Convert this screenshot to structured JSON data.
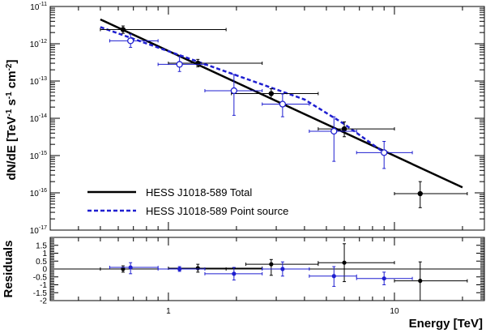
{
  "chart_data": [
    {
      "type": "scatter",
      "xscale": "log",
      "yscale": "log",
      "xlim": [
        0.3,
        25
      ],
      "ylim": [
        1e-17,
        1e-11
      ],
      "xlabel": "Energy [TeV]",
      "ylabel": "dN/dE [TeV",
      "ylabel_units": [
        "-1",
        " s",
        "-1",
        " cm",
        "-2",
        "]"
      ],
      "x_ticks": [
        {
          "value": 1,
          "label": "1"
        },
        {
          "value": 10,
          "label": "10"
        }
      ],
      "y_ticks": [
        {
          "value": 1e-11,
          "base": "10",
          "exp": "-11"
        },
        {
          "value": 1e-12,
          "base": "10",
          "exp": "-12"
        },
        {
          "value": 1e-13,
          "base": "10",
          "exp": "-13"
        },
        {
          "value": 1e-14,
          "base": "10",
          "exp": "-14"
        },
        {
          "value": 1e-15,
          "base": "10",
          "exp": "-15"
        },
        {
          "value": 1e-16,
          "base": "10",
          "exp": "-16"
        },
        {
          "value": 1e-17,
          "base": "10",
          "exp": "-17"
        }
      ],
      "legend_position": "bottom-left",
      "series": [
        {
          "name": "HESS J1018-589 Total",
          "color": "#000000",
          "marker": "filled-circle",
          "line": {
            "x": [
              0.5,
              20
            ],
            "y": [
              4.5e-12,
              1.4e-16
            ],
            "style": "solid"
          },
          "points": [
            {
              "x": 0.63,
              "y": 2.4e-12,
              "xlo": 0.5,
              "xhi": 1.8,
              "ylo": 1.9e-12,
              "yhi": 3e-12
            },
            {
              "x": 1.35,
              "y": 3e-13,
              "xlo": 1.0,
              "xhi": 2.6,
              "ylo": 2.4e-13,
              "yhi": 3.8e-13
            },
            {
              "x": 2.85,
              "y": 4.6e-14,
              "xlo": 1.9,
              "xhi": 4.6,
              "ylo": 3.4e-14,
              "yhi": 6.2e-14
            },
            {
              "x": 6.0,
              "y": 5.2e-15,
              "xlo": 4.6,
              "xhi": 10.0,
              "ylo": 3.2e-15,
              "yhi": 8e-15
            },
            {
              "x": 13.0,
              "y": 9.5e-17,
              "xlo": 10.0,
              "xhi": 21.0,
              "ylo": 4e-17,
              "yhi": 2e-16
            }
          ]
        },
        {
          "name": "HESS J1018-589 Point source",
          "color": "#1f1fd0",
          "marker": "open-circle",
          "line": {
            "x": [
              0.5,
              4.0,
              6.0,
              9.0
            ],
            "y": [
              2.8e-12,
              3.2e-14,
              7e-15,
              1.2e-15
            ],
            "style": "dashed"
          },
          "points": [
            {
              "x": 0.68,
              "y": 1.2e-12,
              "xlo": 0.55,
              "xhi": 0.9,
              "ylo": 8e-13,
              "yhi": 1.8e-12
            },
            {
              "x": 1.12,
              "y": 2.8e-13,
              "xlo": 0.9,
              "xhi": 1.45,
              "ylo": 1.8e-13,
              "yhi": 4.5e-13
            },
            {
              "x": 1.95,
              "y": 5.5e-14,
              "xlo": 1.45,
              "xhi": 2.6,
              "ylo": 1.2e-14,
              "yhi": 1.5e-13
            },
            {
              "x": 3.2,
              "y": 2.4e-14,
              "xlo": 2.6,
              "xhi": 4.2,
              "ylo": 1.1e-14,
              "yhi": 4.5e-14
            },
            {
              "x": 5.4,
              "y": 4.5e-15,
              "xlo": 4.2,
              "xhi": 6.8,
              "ylo": 7e-16,
              "yhi": 1.1e-14
            },
            {
              "x": 9.0,
              "y": 1.2e-15,
              "xlo": 6.8,
              "xhi": 12.0,
              "ylo": 4.5e-16,
              "yhi": 2.4e-15
            }
          ]
        }
      ]
    },
    {
      "type": "scatter",
      "xscale": "log",
      "xlim": [
        0.3,
        25
      ],
      "ylim": [
        -2,
        2
      ],
      "ylabel": "Residuals",
      "y_ticks": [
        {
          "value": 1.5,
          "label": "1.5"
        },
        {
          "value": 1,
          "label": "1"
        },
        {
          "value": 0.5,
          "label": "0.5"
        },
        {
          "value": 0,
          "label": "0"
        },
        {
          "value": -0.5,
          "label": "-0.5"
        },
        {
          "value": -1,
          "label": "-1"
        },
        {
          "value": -1.5,
          "label": "-1.5"
        },
        {
          "value": -2,
          "label": "-2"
        }
      ],
      "zero_line": true,
      "series": [
        {
          "name": "HESS J1018-589 Total",
          "color": "#000000",
          "points": [
            {
              "x": 0.63,
              "y": 0.0,
              "xlo": 0.5,
              "xhi": 1.8,
              "ylo": -0.2,
              "yhi": 0.2
            },
            {
              "x": 1.35,
              "y": 0.05,
              "xlo": 1.0,
              "xhi": 2.6,
              "ylo": -0.2,
              "yhi": 0.3
            },
            {
              "x": 2.85,
              "y": 0.3,
              "xlo": 2.2,
              "xhi": 4.6,
              "ylo": -0.4,
              "yhi": 0.6
            },
            {
              "x": 6.0,
              "y": 0.4,
              "xlo": 4.6,
              "xhi": 10.0,
              "ylo": -0.8,
              "yhi": 1.6
            },
            {
              "x": 13.0,
              "y": -0.75,
              "xlo": 10.0,
              "xhi": 21.0,
              "ylo": -2.0,
              "yhi": 0.45
            }
          ]
        },
        {
          "name": "HESS J1018-589 Point source",
          "color": "#1f1fd0",
          "points": [
            {
              "x": 0.68,
              "y": 0.1,
              "xlo": 0.55,
              "xhi": 0.9,
              "ylo": -0.3,
              "yhi": 0.4
            },
            {
              "x": 1.12,
              "y": 0.0,
              "xlo": 0.9,
              "xhi": 1.45,
              "ylo": -0.15,
              "yhi": 0.15
            },
            {
              "x": 1.95,
              "y": -0.3,
              "xlo": 1.45,
              "xhi": 2.6,
              "ylo": -0.7,
              "yhi": 0.1
            },
            {
              "x": 3.2,
              "y": 0.0,
              "xlo": 2.6,
              "xhi": 4.2,
              "ylo": -0.45,
              "yhi": 0.45
            },
            {
              "x": 5.4,
              "y": -0.45,
              "xlo": 4.2,
              "xhi": 6.8,
              "ylo": -1.1,
              "yhi": 0.15
            },
            {
              "x": 9.0,
              "y": -0.6,
              "xlo": 6.8,
              "xhi": 12.0,
              "ylo": -1.0,
              "yhi": -0.2
            }
          ]
        }
      ]
    }
  ]
}
